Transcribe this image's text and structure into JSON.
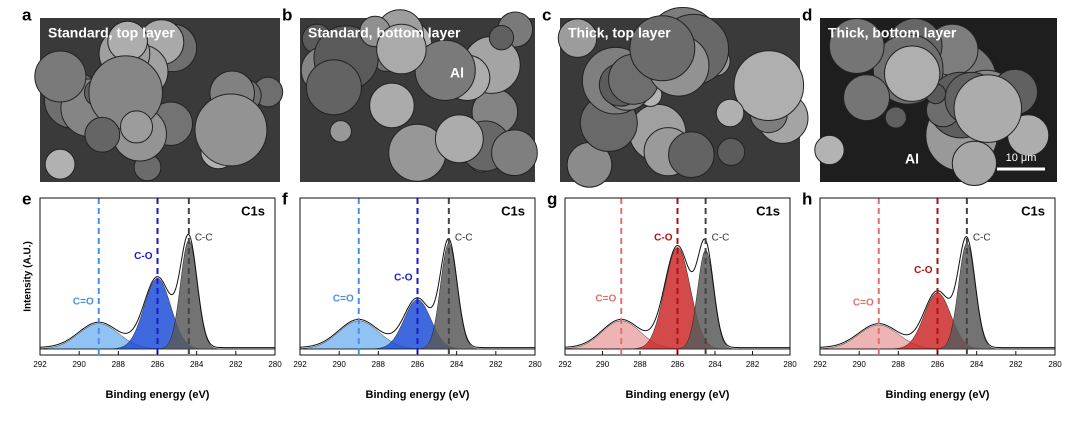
{
  "panels_top": [
    {
      "letter": "a",
      "caption": "Standard, top layer"
    },
    {
      "letter": "b",
      "caption": "Standard, bottom layer",
      "inset": "Al"
    },
    {
      "letter": "c",
      "caption": "Thick, top layer"
    },
    {
      "letter": "d",
      "caption": "Thick, bottom layer",
      "inset": "Al",
      "scale_bar": "10 μm"
    }
  ],
  "chart_data": [
    {
      "type": "area",
      "panel": "e",
      "title": "C1s",
      "xlabel": "Binding energy (eV)",
      "ylabel": "Intensity (A.U.)",
      "xlim": [
        292,
        280
      ],
      "xticks": [
        292,
        290,
        288,
        286,
        284,
        282,
        280
      ],
      "ylim": [
        0,
        1
      ],
      "series": [
        {
          "name": "C=O",
          "color": "#7db8f2",
          "line_color": "#4a90e2",
          "center": 289,
          "height": 0.18,
          "fwhm": 2.4
        },
        {
          "name": "C-O",
          "color": "#1f4fd8",
          "line_color": "#1a1acc",
          "center": 286,
          "height": 0.5,
          "fwhm": 1.6
        },
        {
          "name": "C-C",
          "color": "#5a5a5a",
          "line_color": "#444444",
          "center": 284.4,
          "height": 0.77,
          "fwhm": 1.0
        }
      ]
    },
    {
      "type": "area",
      "panel": "f",
      "title": "C1s",
      "xlabel": "Binding energy (eV)",
      "xlim": [
        292,
        280
      ],
      "xticks": [
        292,
        290,
        288,
        286,
        284,
        282,
        280
      ],
      "ylim": [
        0,
        1
      ],
      "series": [
        {
          "name": "C=O",
          "color": "#7db8f2",
          "line_color": "#4a90e2",
          "center": 289,
          "height": 0.2,
          "fwhm": 2.4
        },
        {
          "name": "C-O",
          "color": "#1f4fd8",
          "line_color": "#1a1acc",
          "center": 286,
          "height": 0.35,
          "fwhm": 1.6
        },
        {
          "name": "C-C",
          "color": "#5a5a5a",
          "line_color": "#444444",
          "center": 284.4,
          "height": 0.75,
          "fwhm": 1.0
        }
      ]
    },
    {
      "type": "area",
      "panel": "g",
      "title": "C1s",
      "xlabel": "Binding energy (eV)",
      "xlim": [
        292,
        280
      ],
      "xticks": [
        292,
        290,
        288,
        286,
        284,
        282,
        280
      ],
      "ylim": [
        0,
        1
      ],
      "series": [
        {
          "name": "C=O",
          "color": "#eba6a6",
          "line_color": "#e07070",
          "center": 289,
          "height": 0.2,
          "fwhm": 2.4
        },
        {
          "name": "C-O",
          "color": "#cc2a2a",
          "line_color": "#b01010",
          "center": 286,
          "height": 0.72,
          "fwhm": 1.6
        },
        {
          "name": "C-C",
          "color": "#5a5a5a",
          "line_color": "#444444",
          "center": 284.5,
          "height": 0.7,
          "fwhm": 1.0
        }
      ]
    },
    {
      "type": "area",
      "panel": "h",
      "title": "C1s",
      "xlabel": "Binding energy (eV)",
      "xlim": [
        292,
        280
      ],
      "xticks": [
        292,
        290,
        288,
        286,
        284,
        282,
        280
      ],
      "ylim": [
        0,
        1
      ],
      "series": [
        {
          "name": "C=O",
          "color": "#eba6a6",
          "line_color": "#e07070",
          "center": 289,
          "height": 0.17,
          "fwhm": 2.4
        },
        {
          "name": "C-O",
          "color": "#cc2a2a",
          "line_color": "#b01010",
          "center": 286,
          "height": 0.4,
          "fwhm": 1.6
        },
        {
          "name": "C-C",
          "color": "#5a5a5a",
          "line_color": "#444444",
          "center": 284.5,
          "height": 0.75,
          "fwhm": 1.0
        }
      ]
    }
  ]
}
